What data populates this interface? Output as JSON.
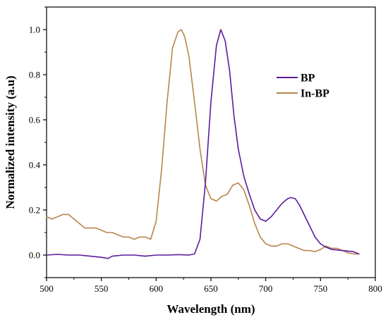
{
  "chart_data": {
    "type": "line",
    "title": "",
    "xlabel": "Wavelength (nm)",
    "ylabel": "Normalized intensity (a.u)",
    "xlim": [
      500,
      800
    ],
    "ylim": [
      -0.1,
      1.1
    ],
    "x_ticks": [
      500,
      550,
      600,
      650,
      700,
      750,
      800
    ],
    "y_ticks": [
      0.0,
      0.2,
      0.4,
      0.6,
      0.8,
      1.0
    ],
    "x_tick_labels": [
      "500",
      "550",
      "600",
      "650",
      "700",
      "750",
      "800"
    ],
    "y_tick_labels": [
      "0.0",
      "0.2",
      "0.4",
      "0.6",
      "0.8",
      "1.0"
    ],
    "grid": false,
    "legend_position": "right",
    "series": [
      {
        "name": "BP",
        "color": "#5B1A9C",
        "x": [
          500,
          510,
          520,
          530,
          540,
          550,
          556,
          560,
          570,
          580,
          590,
          600,
          610,
          620,
          630,
          635,
          640,
          645,
          650,
          655,
          659,
          663,
          667,
          671,
          675,
          680,
          685,
          690,
          695,
          700,
          705,
          710,
          715,
          720,
          723,
          727,
          731,
          735,
          740,
          745,
          750,
          755,
          760,
          770,
          780,
          785
        ],
        "y": [
          0.0,
          0.003,
          0.0,
          0.0,
          -0.005,
          -0.01,
          -0.015,
          -0.005,
          0.0,
          0.0,
          -0.005,
          0.0,
          0.0,
          0.002,
          0.0,
          0.005,
          0.07,
          0.32,
          0.68,
          0.93,
          1.0,
          0.95,
          0.82,
          0.62,
          0.47,
          0.35,
          0.27,
          0.2,
          0.16,
          0.15,
          0.17,
          0.2,
          0.23,
          0.25,
          0.255,
          0.25,
          0.22,
          0.18,
          0.13,
          0.08,
          0.05,
          0.035,
          0.025,
          0.02,
          0.015,
          0.005
        ]
      },
      {
        "name": "In-BP",
        "color": "#B8864B",
        "x": [
          500,
          505,
          510,
          515,
          520,
          525,
          530,
          535,
          540,
          545,
          550,
          555,
          560,
          565,
          570,
          575,
          580,
          585,
          590,
          595,
          600,
          605,
          610,
          615,
          620,
          623,
          626,
          630,
          635,
          640,
          645,
          650,
          655,
          660,
          665,
          670,
          675,
          680,
          685,
          690,
          695,
          700,
          705,
          710,
          715,
          720,
          725,
          730,
          735,
          740,
          745,
          750,
          755,
          760,
          765,
          770,
          775,
          780,
          785
        ],
        "y": [
          0.17,
          0.16,
          0.17,
          0.18,
          0.18,
          0.16,
          0.14,
          0.12,
          0.12,
          0.12,
          0.11,
          0.1,
          0.1,
          0.09,
          0.08,
          0.08,
          0.07,
          0.08,
          0.08,
          0.07,
          0.15,
          0.38,
          0.68,
          0.92,
          0.99,
          1.0,
          0.97,
          0.88,
          0.68,
          0.47,
          0.31,
          0.25,
          0.24,
          0.26,
          0.27,
          0.31,
          0.32,
          0.29,
          0.22,
          0.14,
          0.08,
          0.05,
          0.04,
          0.04,
          0.05,
          0.05,
          0.04,
          0.03,
          0.02,
          0.02,
          0.015,
          0.025,
          0.04,
          0.03,
          0.03,
          0.02,
          0.01,
          0.005,
          0.005
        ]
      }
    ]
  }
}
